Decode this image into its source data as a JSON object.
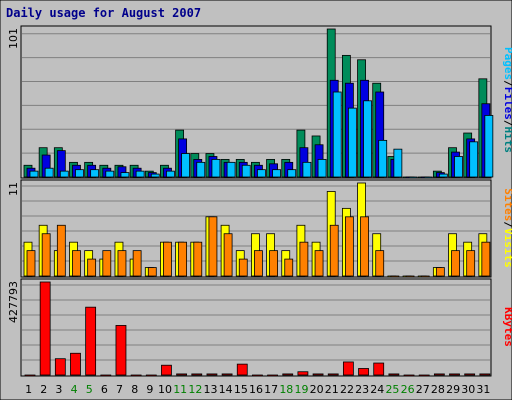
{
  "chart_data": {
    "type": "bar",
    "title": "Daily usage for August 2007",
    "categories": [
      "1",
      "2",
      "3",
      "4",
      "5",
      "6",
      "7",
      "8",
      "9",
      "10",
      "11",
      "12",
      "13",
      "14",
      "15",
      "16",
      "17",
      "18",
      "19",
      "20",
      "21",
      "22",
      "23",
      "24",
      "25",
      "26",
      "27",
      "28",
      "29",
      "30",
      "31"
    ],
    "weekend_days": [
      "4",
      "5",
      "11",
      "12",
      "18",
      "19",
      "25",
      "26"
    ],
    "grid": true,
    "panels": [
      {
        "ymax_label": "101",
        "ylim": [
          0,
          101
        ],
        "legend": [
          "Pages",
          "/",
          "Files",
          "/",
          "Hits"
        ],
        "legend_colors": [
          "#00c0ff",
          "#000000",
          "#0000e0",
          "#000000",
          "#008080"
        ],
        "series": [
          {
            "name": "Hits",
            "color": "#008c5a",
            "values": [
              8,
              20,
              20,
              10,
              10,
              8,
              8,
              8,
              4,
              8,
              32,
              16,
              16,
              12,
              12,
              10,
              12,
              12,
              32,
              28,
              101,
              83,
              80,
              64,
              14,
              0,
              0,
              4,
              20,
              30,
              67
            ]
          },
          {
            "name": "Files",
            "color": "#0000e0",
            "values": [
              6,
              15,
              18,
              8,
              8,
              6,
              7,
              6,
              3,
              6,
              26,
              12,
              14,
              10,
              10,
              8,
              9,
              10,
              20,
              22,
              66,
              64,
              66,
              58,
              12,
              0,
              0,
              3,
              17,
              26,
              50
            ]
          },
          {
            "name": "Pages",
            "color": "#00c0ff",
            "values": [
              4,
              6,
              4,
              5,
              5,
              4,
              3,
              4,
              2,
              4,
              16,
              10,
              12,
              10,
              8,
              5,
              5,
              5,
              10,
              12,
              58,
              47,
              52,
              25,
              19,
              0,
              0,
              2,
              14,
              24,
              42
            ]
          }
        ]
      },
      {
        "ymax_label": "11",
        "ylim": [
          0,
          11
        ],
        "legend": [
          "Sites",
          "/",
          "Visits"
        ],
        "legend_colors": [
          "#ff8000",
          "#000000",
          "#ffff00"
        ],
        "series": [
          {
            "name": "Visits",
            "color": "#ffff00",
            "values": [
              4,
              6,
              3,
              4,
              3,
              2,
              4,
              2,
              1,
              4,
              4,
              4,
              7,
              6,
              3,
              5,
              5,
              3,
              6,
              4,
              10,
              8,
              11,
              5,
              0,
              0,
              0,
              1,
              5,
              4,
              5
            ]
          },
          {
            "name": "Sites",
            "color": "#ff8000",
            "values": [
              3,
              5,
              6,
              3,
              2,
              3,
              3,
              3,
              1,
              4,
              4,
              4,
              7,
              5,
              2,
              3,
              3,
              2,
              4,
              3,
              6,
              7,
              7,
              3,
              0,
              0,
              0,
              1,
              3,
              3,
              4
            ]
          }
        ]
      },
      {
        "ymax_label": "427793",
        "ylim": [
          0,
          427793
        ],
        "legend": [
          "KBytes"
        ],
        "legend_colors": [
          "#ff0000"
        ],
        "series": [
          {
            "name": "KBytes",
            "color": "#ff0000",
            "values": [
              0,
              427793,
              75000,
              100000,
              312000,
              0,
              228000,
              0,
              0,
              45000,
              5000,
              5000,
              5000,
              5000,
              50000,
              0,
              0,
              5000,
              15000,
              5000,
              5000,
              60000,
              30000,
              55000,
              5000,
              0,
              0,
              5000,
              5000,
              5000,
              5000
            ]
          }
        ]
      }
    ]
  }
}
